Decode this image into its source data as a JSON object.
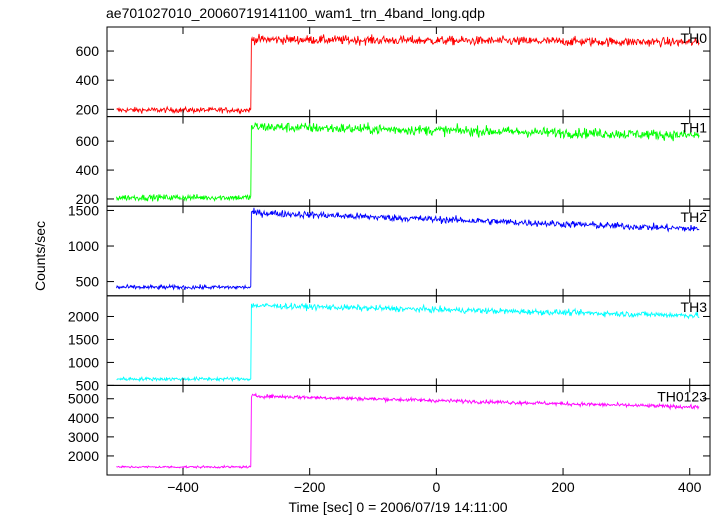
{
  "chart_data": {
    "type": "line",
    "title": "ae701027010_20060719141100_wam1_trn_4band_long.qdp",
    "xlabel": "Time [sec] 0 = 2006/07/19 14:11:00",
    "ylabel": "Counts/sec",
    "xlim": [
      -520,
      432
    ],
    "xticks": [
      -400,
      -200,
      0,
      200,
      400
    ],
    "step_time": -292,
    "x_range": [
      -505,
      415
    ],
    "grid": false,
    "panels": [
      {
        "name": "TH0",
        "color": "#ff0000",
        "ylim": [
          150,
          765
        ],
        "yticks": [
          200,
          400,
          600
        ],
        "values": {
          "pre_level": 195,
          "post_start": 680,
          "post_end": 660,
          "noise": 22
        }
      },
      {
        "name": "TH1",
        "color": "#00ff00",
        "ylim": [
          150,
          770
        ],
        "yticks": [
          200,
          400,
          600
        ],
        "values": {
          "pre_level": 210,
          "post_start": 700,
          "post_end": 640,
          "noise": 25
        }
      },
      {
        "name": "TH2",
        "color": "#0000ff",
        "ylim": [
          300,
          1560
        ],
        "yticks": [
          500,
          1000,
          1500
        ],
        "values": {
          "pre_level": 420,
          "post_start": 1470,
          "post_end": 1240,
          "noise": 35
        }
      },
      {
        "name": "TH3",
        "color": "#00ffff",
        "ylim": [
          500,
          2450
        ],
        "yticks": [
          500,
          1000,
          1500,
          2000
        ],
        "values": {
          "pre_level": 640,
          "post_start": 2240,
          "post_end": 2020,
          "noise": 45
        }
      },
      {
        "name": "TH0123",
        "color": "#ff00ff",
        "ylim": [
          1000,
          5700
        ],
        "yticks": [
          2000,
          3000,
          4000,
          5000
        ],
        "values": {
          "pre_level": 1420,
          "post_start": 5150,
          "post_end": 4560,
          "noise": 70
        }
      }
    ]
  }
}
